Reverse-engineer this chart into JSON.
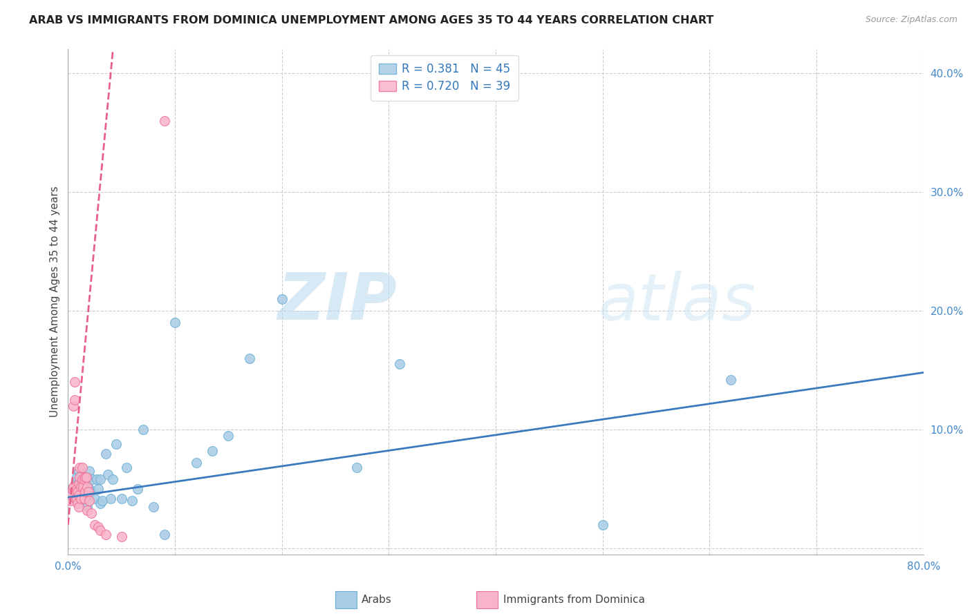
{
  "title": "ARAB VS IMMIGRANTS FROM DOMINICA UNEMPLOYMENT AMONG AGES 35 TO 44 YEARS CORRELATION CHART",
  "source": "Source: ZipAtlas.com",
  "ylabel": "Unemployment Among Ages 35 to 44 years",
  "xlim": [
    0,
    0.8
  ],
  "ylim": [
    -0.005,
    0.42
  ],
  "xticks": [
    0.0,
    0.1,
    0.2,
    0.3,
    0.4,
    0.5,
    0.6,
    0.7,
    0.8
  ],
  "xticklabels": [
    "0.0%",
    "",
    "",
    "",
    "",
    "",
    "",
    "",
    "80.0%"
  ],
  "yticks_right": [
    0.0,
    0.1,
    0.2,
    0.3,
    0.4
  ],
  "yticklabels_right": [
    "",
    "10.0%",
    "20.0%",
    "30.0%",
    "40.0%"
  ],
  "arab_color": "#a8cce4",
  "arab_edge_color": "#6aafd6",
  "dominica_color": "#f8b4c8",
  "dominica_edge_color": "#f07098",
  "trend_arab_color": "#3a7bbf",
  "trend_dominica_color": "#e8608a",
  "legend_arab_R": "0.381",
  "legend_arab_N": "45",
  "legend_dominica_R": "0.720",
  "legend_dominica_N": "39",
  "legend_arab_label": "Arabs",
  "legend_dominica_label": "Immigrants from Dominica",
  "watermark_zip": "ZIP",
  "watermark_atlas": "atlas",
  "arab_x": [
    0.003,
    0.005,
    0.007,
    0.008,
    0.01,
    0.01,
    0.012,
    0.013,
    0.015,
    0.015,
    0.017,
    0.018,
    0.018,
    0.02,
    0.02,
    0.022,
    0.023,
    0.025,
    0.027,
    0.028,
    0.03,
    0.03,
    0.032,
    0.035,
    0.037,
    0.04,
    0.042,
    0.045,
    0.05,
    0.055,
    0.06,
    0.065,
    0.07,
    0.08,
    0.09,
    0.1,
    0.12,
    0.135,
    0.15,
    0.17,
    0.2,
    0.27,
    0.31,
    0.5,
    0.62
  ],
  "arab_y": [
    0.05,
    0.045,
    0.055,
    0.06,
    0.04,
    0.065,
    0.05,
    0.055,
    0.042,
    0.06,
    0.058,
    0.035,
    0.06,
    0.05,
    0.065,
    0.048,
    0.058,
    0.042,
    0.058,
    0.05,
    0.038,
    0.058,
    0.04,
    0.08,
    0.062,
    0.042,
    0.058,
    0.088,
    0.042,
    0.068,
    0.04,
    0.05,
    0.1,
    0.035,
    0.012,
    0.19,
    0.072,
    0.082,
    0.095,
    0.16,
    0.21,
    0.068,
    0.155,
    0.02,
    0.142
  ],
  "dominica_x": [
    0.002,
    0.003,
    0.004,
    0.005,
    0.005,
    0.006,
    0.006,
    0.007,
    0.007,
    0.008,
    0.008,
    0.009,
    0.009,
    0.01,
    0.01,
    0.01,
    0.011,
    0.011,
    0.012,
    0.012,
    0.013,
    0.013,
    0.014,
    0.015,
    0.015,
    0.016,
    0.016,
    0.017,
    0.018,
    0.018,
    0.019,
    0.02,
    0.022,
    0.025,
    0.028,
    0.03,
    0.035,
    0.05,
    0.09
  ],
  "dominica_y": [
    0.04,
    0.045,
    0.05,
    0.052,
    0.12,
    0.125,
    0.14,
    0.042,
    0.048,
    0.042,
    0.05,
    0.038,
    0.048,
    0.035,
    0.045,
    0.055,
    0.06,
    0.068,
    0.042,
    0.052,
    0.058,
    0.068,
    0.052,
    0.042,
    0.058,
    0.048,
    0.06,
    0.06,
    0.032,
    0.052,
    0.048,
    0.04,
    0.03,
    0.02,
    0.018,
    0.015,
    0.012,
    0.01,
    0.36
  ],
  "arab_trend_x": [
    0.0,
    0.8
  ],
  "arab_trend_y": [
    0.043,
    0.148
  ],
  "dominica_trend_x": [
    0.0,
    0.042
  ],
  "dominica_trend_y": [
    0.02,
    0.42
  ]
}
